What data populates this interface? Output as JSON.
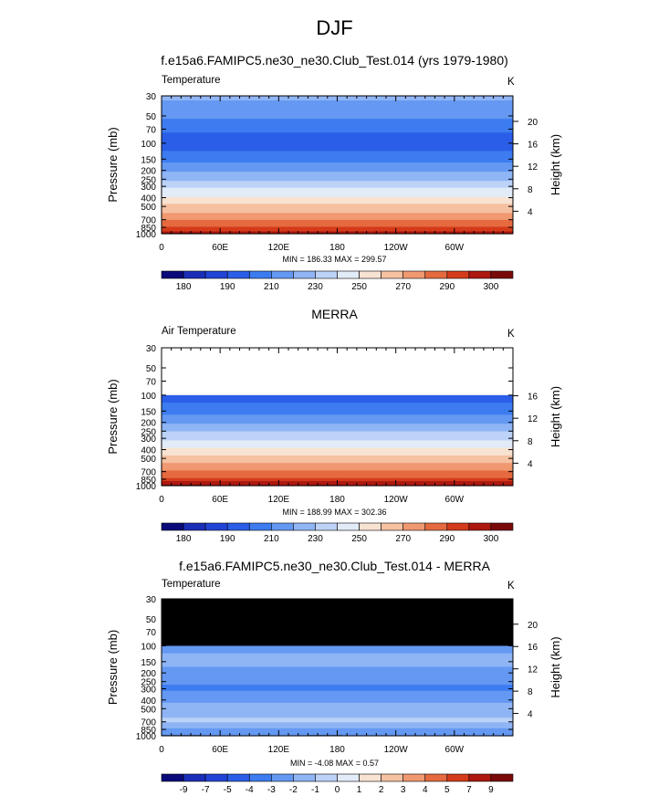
{
  "page": {
    "title": "DJF"
  },
  "lon_ticks": [
    {
      "lon": 0,
      "label": "0"
    },
    {
      "lon": 60,
      "label": "60E"
    },
    {
      "lon": 120,
      "label": "120E"
    },
    {
      "lon": 180,
      "label": "180"
    },
    {
      "lon": 240,
      "label": "120W"
    },
    {
      "lon": 300,
      "label": "60W"
    }
  ],
  "pressure_ticks": [
    30,
    50,
    70,
    100,
    150,
    200,
    250,
    300,
    400,
    500,
    700,
    850,
    1000
  ],
  "height_ticks": [
    {
      "km": 4,
      "label": "4"
    },
    {
      "km": 8,
      "label": "8"
    },
    {
      "km": 12,
      "label": "12"
    },
    {
      "km": 16,
      "label": "16"
    },
    {
      "km": 20,
      "label": "20"
    }
  ],
  "panels": [
    {
      "id": "model",
      "title": "f.e15a6.FAMIPC5.ne30_ne30.Club_Test.014 (yrs 1979-1980)",
      "var_label": "Temperature",
      "units": "K",
      "ylabel": "Pressure (mb)",
      "ylabel_right": "Height (km)",
      "stats": "MIN = 186.33  MAX = 299.57",
      "height_axis_max_km": 20,
      "colorbar_labels": [
        "180",
        "190",
        "210",
        "230",
        "250",
        "270",
        "290",
        "300"
      ]
    },
    {
      "id": "merra",
      "title": "MERRA",
      "var_label": "Air Temperature",
      "units": "K",
      "ylabel": "Pressure (mb)",
      "ylabel_right": "Height (km)",
      "stats": "MIN = 188.99  MAX = 302.36",
      "height_axis_max_km": 16,
      "colorbar_labels": [
        "180",
        "190",
        "210",
        "230",
        "250",
        "270",
        "290",
        "300"
      ]
    },
    {
      "id": "diff",
      "title": "f.e15a6.FAMIPC5.ne30_ne30.Club_Test.014 - MERRA",
      "var_label": "Temperature",
      "units": "K",
      "ylabel": "Pressure (mb)",
      "ylabel_right": "Height (km)",
      "stats": "MIN = -4.08  MAX =  0.57",
      "height_axis_max_km": 20,
      "colorbar_labels": [
        "-9",
        "-7",
        "-5",
        "-4",
        "-3",
        "-2",
        "-1",
        "0",
        "1",
        "2",
        "3",
        "4",
        "5",
        "7",
        "9"
      ]
    }
  ],
  "chart_data": [
    {
      "type": "heatmap",
      "title": "f.e15a6.FAMIPC5.ne30_ne30.Club_Test.014 (yrs 1979-1980)",
      "variable": "Temperature",
      "units": "K",
      "xlabel": "",
      "ylabel": "Pressure (mb)",
      "ylabel_right": "Height (km)",
      "xlim": [
        0,
        360
      ],
      "ylim": [
        1000,
        30
      ],
      "min": 186.33,
      "max": 299.57,
      "zonal_profile": [
        {
          "p": 30,
          "t": 222
        },
        {
          "p": 50,
          "t": 212
        },
        {
          "p": 70,
          "t": 202
        },
        {
          "p": 100,
          "t": 195
        },
        {
          "p": 150,
          "t": 205
        },
        {
          "p": 200,
          "t": 218
        },
        {
          "p": 250,
          "t": 228
        },
        {
          "p": 300,
          "t": 237
        },
        {
          "p": 400,
          "t": 252
        },
        {
          "p": 500,
          "t": 263
        },
        {
          "p": 700,
          "t": 280
        },
        {
          "p": 850,
          "t": 291
        },
        {
          "p": 1000,
          "t": 298
        }
      ],
      "cold_pool": [
        {
          "lon_center": 165,
          "lon_halfwidth": 55,
          "p_center": 95,
          "amplitude": -6
        },
        {
          "lon_center": 300,
          "lon_halfwidth": 20,
          "p_center": 95,
          "amplitude": -4
        }
      ]
    },
    {
      "type": "heatmap",
      "title": "MERRA",
      "variable": "Air Temperature",
      "units": "K",
      "xlabel": "",
      "ylabel": "Pressure (mb)",
      "ylabel_right": "Height (km)",
      "xlim": [
        0,
        360
      ],
      "ylim": [
        1000,
        30
      ],
      "data_top_pressure": 100,
      "min": 188.99,
      "max": 302.36,
      "zonal_profile": [
        {
          "p": 100,
          "t": 194
        },
        {
          "p": 150,
          "t": 206
        },
        {
          "p": 200,
          "t": 219
        },
        {
          "p": 250,
          "t": 229
        },
        {
          "p": 300,
          "t": 238
        },
        {
          "p": 400,
          "t": 253
        },
        {
          "p": 500,
          "t": 265
        },
        {
          "p": 700,
          "t": 281
        },
        {
          "p": 850,
          "t": 292
        },
        {
          "p": 1000,
          "t": 300
        }
      ]
    },
    {
      "type": "heatmap",
      "title": "f.e15a6.FAMIPC5.ne30_ne30.Club_Test.014 - MERRA",
      "variable": "Temperature",
      "units": "K",
      "xlabel": "",
      "ylabel": "Pressure (mb)",
      "ylabel_right": "Height (km)",
      "xlim": [
        0,
        360
      ],
      "ylim": [
        1000,
        30
      ],
      "missing_above_pressure": 100,
      "min": -4.08,
      "max": 0.57,
      "zonal_profile": [
        {
          "p": 100,
          "t": -2.5
        },
        {
          "p": 150,
          "t": -1.5
        },
        {
          "p": 200,
          "t": -2.5
        },
        {
          "p": 250,
          "t": -2.8
        },
        {
          "p": 300,
          "t": -3.2
        },
        {
          "p": 400,
          "t": -2.2
        },
        {
          "p": 500,
          "t": -1.5
        },
        {
          "p": 700,
          "t": -0.8
        },
        {
          "p": 850,
          "t": -2.2
        },
        {
          "p": 1000,
          "t": -2.5
        }
      ]
    }
  ],
  "colorbars": [
    {
      "levels": [
        180,
        185,
        190,
        200,
        210,
        220,
        230,
        240,
        250,
        260,
        270,
        280,
        290,
        295,
        300
      ],
      "colors": [
        "#0a0a7a",
        "#1a2eb8",
        "#2244d6",
        "#2a5ee8",
        "#3d7cf0",
        "#6498f2",
        "#8fb5f5",
        "#bcd2f7",
        "#e2ebf8",
        "#f8e2d2",
        "#f5c1a1",
        "#f09870",
        "#e56a40",
        "#d43b1a",
        "#ad1810",
        "#7a0a0a"
      ]
    },
    {
      "levels": [
        -9,
        -7,
        -5,
        -4,
        -3,
        -2,
        -1,
        0,
        1,
        2,
        3,
        4,
        5,
        7,
        9
      ],
      "colors": [
        "#0a0a7a",
        "#1a2eb8",
        "#2244d6",
        "#2a5ee8",
        "#3d7cf0",
        "#6498f2",
        "#8fb5f5",
        "#bcd2f7",
        "#e2ebf8",
        "#f8e2d2",
        "#f5c1a1",
        "#f09870",
        "#e56a40",
        "#d43b1a",
        "#ad1810",
        "#7a0a0a"
      ]
    }
  ],
  "colors": {
    "missing": "#000000",
    "frame": "#000000",
    "background": "#ffffff"
  }
}
